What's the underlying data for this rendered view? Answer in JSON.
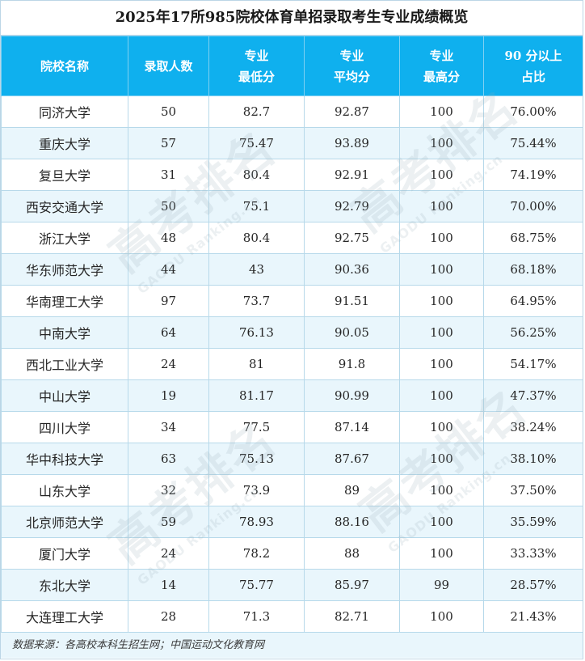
{
  "title": "2025年17所985院校体育单招录取考生专业成绩概览",
  "headers": {
    "school": "院校名称",
    "admitted": "录取人数",
    "min_line1": "专业",
    "min_line2": "最低分",
    "avg_line1": "专业",
    "avg_line2": "平均分",
    "max_line1": "专业",
    "max_line2": "最高分",
    "pct_line1": "90 分以上",
    "pct_line2": "占比"
  },
  "rows": [
    {
      "school": "同济大学",
      "admitted": "50",
      "min": "82.7",
      "avg": "92.87",
      "max": "100",
      "pct": "76.00%"
    },
    {
      "school": "重庆大学",
      "admitted": "57",
      "min": "75.47",
      "avg": "93.89",
      "max": "100",
      "pct": "75.44%"
    },
    {
      "school": "复旦大学",
      "admitted": "31",
      "min": "80.4",
      "avg": "92.91",
      "max": "100",
      "pct": "74.19%"
    },
    {
      "school": "西安交通大学",
      "admitted": "50",
      "min": "75.1",
      "avg": "92.79",
      "max": "100",
      "pct": "70.00%"
    },
    {
      "school": "浙江大学",
      "admitted": "48",
      "min": "80.4",
      "avg": "92.75",
      "max": "100",
      "pct": "68.75%"
    },
    {
      "school": "华东师范大学",
      "admitted": "44",
      "min": "43",
      "avg": "90.36",
      "max": "100",
      "pct": "68.18%"
    },
    {
      "school": "华南理工大学",
      "admitted": "97",
      "min": "73.7",
      "avg": "91.51",
      "max": "100",
      "pct": "64.95%"
    },
    {
      "school": "中南大学",
      "admitted": "64",
      "min": "76.13",
      "avg": "90.05",
      "max": "100",
      "pct": "56.25%"
    },
    {
      "school": "西北工业大学",
      "admitted": "24",
      "min": "81",
      "avg": "91.8",
      "max": "100",
      "pct": "54.17%"
    },
    {
      "school": "中山大学",
      "admitted": "19",
      "min": "81.17",
      "avg": "90.99",
      "max": "100",
      "pct": "47.37%"
    },
    {
      "school": "四川大学",
      "admitted": "34",
      "min": "77.5",
      "avg": "87.14",
      "max": "100",
      "pct": "38.24%"
    },
    {
      "school": "华中科技大学",
      "admitted": "63",
      "min": "75.13",
      "avg": "87.67",
      "max": "100",
      "pct": "38.10%"
    },
    {
      "school": "山东大学",
      "admitted": "32",
      "min": "73.9",
      "avg": "89",
      "max": "100",
      "pct": "37.50%"
    },
    {
      "school": "北京师范大学",
      "admitted": "59",
      "min": "78.93",
      "avg": "88.16",
      "max": "100",
      "pct": "35.59%"
    },
    {
      "school": "厦门大学",
      "admitted": "24",
      "min": "78.2",
      "avg": "88",
      "max": "100",
      "pct": "33.33%"
    },
    {
      "school": "东北大学",
      "admitted": "14",
      "min": "75.77",
      "avg": "85.97",
      "max": "99",
      "pct": "28.57%"
    },
    {
      "school": "大连理工大学",
      "admitted": "28",
      "min": "71.3",
      "avg": "82.71",
      "max": "100",
      "pct": "21.43%"
    }
  ],
  "source": "数据来源：各高校本科生招生网；中国运动文化教育网",
  "watermark": {
    "text": "高考排名",
    "subtext": "GAODU Ranking.cn"
  },
  "colors": {
    "header_bg": "#0fb0ee",
    "header_text": "#ffffff",
    "stripe": "#e9f6fc",
    "border": "#b7d9ea"
  }
}
